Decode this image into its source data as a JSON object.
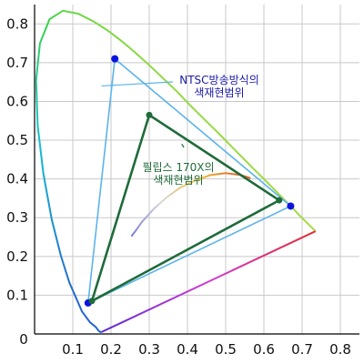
{
  "chart_data": {
    "type": "line",
    "title": "",
    "xlabel": "",
    "ylabel": "",
    "xlim": [
      0,
      0.85
    ],
    "ylim": [
      0,
      0.85
    ],
    "grid": true,
    "x_ticks": [
      "0",
      "0.1",
      "0.2",
      "0.3",
      "0.4",
      "0.5",
      "0.6",
      "0.7",
      "0.8"
    ],
    "y_ticks": [
      "0",
      "0.1",
      "0.2",
      "0.3",
      "0.4",
      "0.5",
      "0.6",
      "0.7",
      "0.8"
    ],
    "spectral_locus": {
      "points": [
        [
          0.175,
          0.005
        ],
        [
          0.172,
          0.005
        ],
        [
          0.167,
          0.009
        ],
        [
          0.16,
          0.018
        ],
        [
          0.145,
          0.03
        ],
        [
          0.124,
          0.058
        ],
        [
          0.091,
          0.133
        ],
        [
          0.069,
          0.201
        ],
        [
          0.045,
          0.295
        ],
        [
          0.023,
          0.413
        ],
        [
          0.008,
          0.538
        ],
        [
          0.004,
          0.655
        ],
        [
          0.014,
          0.75
        ],
        [
          0.039,
          0.812
        ],
        [
          0.074,
          0.834
        ],
        [
          0.115,
          0.826
        ],
        [
          0.155,
          0.806
        ],
        [
          0.193,
          0.782
        ],
        [
          0.23,
          0.754
        ],
        [
          0.266,
          0.724
        ],
        [
          0.302,
          0.692
        ],
        [
          0.337,
          0.659
        ],
        [
          0.373,
          0.625
        ],
        [
          0.408,
          0.589
        ],
        [
          0.444,
          0.554
        ],
        [
          0.479,
          0.52
        ],
        [
          0.512,
          0.487
        ],
        [
          0.544,
          0.455
        ],
        [
          0.575,
          0.424
        ],
        [
          0.603,
          0.397
        ],
        [
          0.627,
          0.373
        ],
        [
          0.648,
          0.352
        ],
        [
          0.666,
          0.334
        ],
        [
          0.68,
          0.32
        ],
        [
          0.691,
          0.308
        ],
        [
          0.735,
          0.265
        ]
      ],
      "purple_line": [
        [
          0.735,
          0.265
        ],
        [
          0.175,
          0.005
        ]
      ]
    },
    "planckian_locus": [
      [
        0.253,
        0.252
      ],
      [
        0.265,
        0.267
      ],
      [
        0.28,
        0.288
      ],
      [
        0.313,
        0.324
      ],
      [
        0.345,
        0.352
      ],
      [
        0.38,
        0.377
      ],
      [
        0.42,
        0.396
      ],
      [
        0.46,
        0.41
      ],
      [
        0.5,
        0.415
      ],
      [
        0.54,
        0.41
      ],
      [
        0.565,
        0.402
      ]
    ],
    "series": [
      {
        "name": "NTSC방송방식의 색재현범위",
        "points": [
          [
            0.67,
            0.33
          ],
          [
            0.21,
            0.71
          ],
          [
            0.14,
            0.08
          ]
        ],
        "color": "#5bb4ea"
      },
      {
        "name": "필립스 170X의 색재현범위",
        "points": [
          [
            0.64,
            0.345
          ],
          [
            0.3,
            0.565
          ],
          [
            0.15,
            0.085
          ]
        ],
        "color": "#1f6b3a"
      }
    ],
    "annotations": [
      {
        "lines": [
          "NTSC방송방식의",
          "색재현범위"
        ],
        "color": "#1a1aa8",
        "arrow_to": [
          0.175,
          0.64
        ]
      },
      {
        "lines": [
          "필립스 170X의",
          "색재현범위"
        ],
        "color": "#1f6b3a",
        "arrow_to": [
          0.385,
          0.49
        ]
      }
    ]
  }
}
